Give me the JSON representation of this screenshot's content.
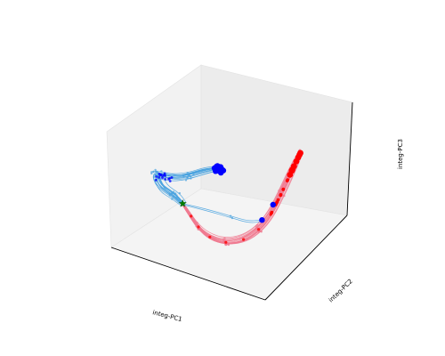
{
  "chart_data": {
    "type": "line",
    "projection": "3d",
    "grid": false,
    "xlabel": "integ-PC1",
    "ylabel": "integ-PC2",
    "zlabel": "integ-PC3",
    "colors": {
      "trajectory_a": "#4aa3df",
      "trajectory_b": "#f07a90",
      "start_marker": "#0000ff",
      "end_marker_b": "#ff0000",
      "fixed_point": "#008000"
    },
    "series": [
      {
        "id": "trajectory_a",
        "count": 15,
        "start_cluster": [
          0.55,
          0.3,
          0.78
        ],
        "path": [
          [
            0.55,
            0.3,
            0.78
          ],
          [
            0.46,
            0.3,
            0.72
          ],
          [
            0.36,
            0.27,
            0.64
          ],
          [
            0.26,
            0.24,
            0.6
          ],
          [
            0.18,
            0.22,
            0.61
          ],
          [
            0.22,
            0.2,
            0.52
          ],
          [
            0.3,
            0.21,
            0.48
          ],
          [
            0.36,
            0.2,
            0.44
          ]
        ]
      },
      {
        "id": "trajectory_b",
        "count": 18,
        "path": [
          [
            0.36,
            0.2,
            0.44
          ],
          [
            0.4,
            0.22,
            0.34
          ],
          [
            0.44,
            0.23,
            0.26
          ],
          [
            0.5,
            0.25,
            0.19
          ],
          [
            0.58,
            0.29,
            0.16
          ],
          [
            0.66,
            0.35,
            0.19
          ],
          [
            0.72,
            0.42,
            0.27
          ],
          [
            0.76,
            0.49,
            0.38
          ],
          [
            0.8,
            0.55,
            0.55
          ],
          [
            0.84,
            0.61,
            0.74
          ],
          [
            0.87,
            0.66,
            0.88
          ]
        ]
      },
      {
        "id": "outlier_trajectories",
        "count": 2,
        "path": [
          [
            0.36,
            0.2,
            0.44
          ],
          [
            0.46,
            0.28,
            0.4
          ],
          [
            0.58,
            0.36,
            0.35
          ],
          [
            0.66,
            0.42,
            0.31
          ],
          [
            0.72,
            0.46,
            0.33
          ]
        ]
      }
    ],
    "markers": [
      {
        "kind": "fixed_point",
        "shape": "star",
        "point": [
          0.36,
          0.2,
          0.44
        ]
      },
      {
        "kind": "start",
        "point": [
          0.72,
          0.46,
          0.33
        ]
      },
      {
        "kind": "start",
        "point": [
          0.76,
          0.52,
          0.45
        ]
      }
    ]
  }
}
